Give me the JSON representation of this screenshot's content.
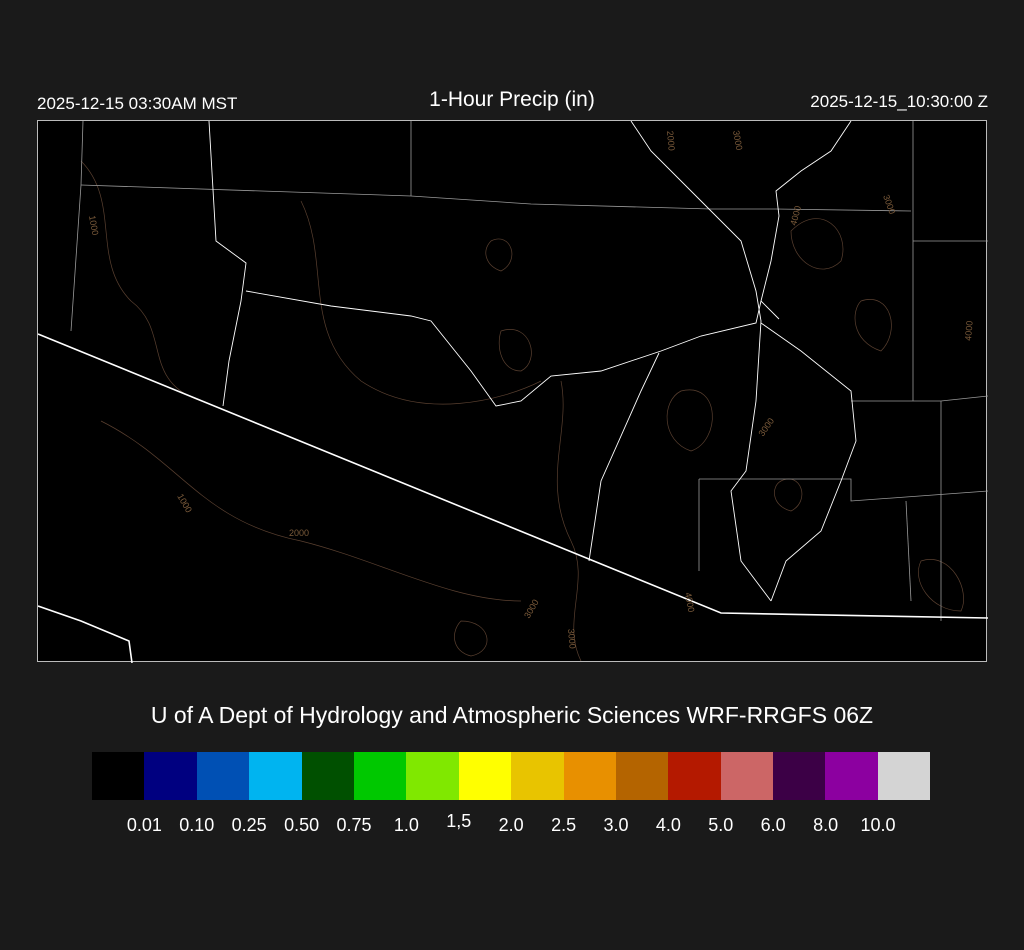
{
  "header": {
    "local_time": "2025-12-15 03:30AM MST",
    "title": "1-Hour Precip (in)",
    "utc_time": "2025-12-15_10:30:00 Z"
  },
  "map": {
    "contour_labels": [
      "1000",
      "2000",
      "3000",
      "4000",
      "3000",
      "4000",
      "3000",
      "1000",
      "2000",
      "3000",
      "3000",
      "4000"
    ],
    "colors": {
      "background": "#000000",
      "border": "#ffffff",
      "state_lines": "#9a9a9a",
      "contours": "#5a4030"
    }
  },
  "credit": "U of A Dept of Hydrology and Atmospheric Sciences WRF-RRGFS 06Z",
  "legend": {
    "colors": [
      "#000000",
      "#000080",
      "#0050b4",
      "#00b4f0",
      "#005000",
      "#00c800",
      "#80e800",
      "#ffff00",
      "#e8c400",
      "#e89000",
      "#b46400",
      "#b41900",
      "#cc6666",
      "#3c0046",
      "#8c00a0",
      "#d4d4d4"
    ],
    "labels": [
      "0.01",
      "0.10",
      "0.25",
      "0.50",
      "0.75",
      "1.0",
      "1,5",
      "2.0",
      "2.5",
      "3.0",
      "4.0",
      "5.0",
      "6.0",
      "8.0",
      "10.0"
    ]
  }
}
